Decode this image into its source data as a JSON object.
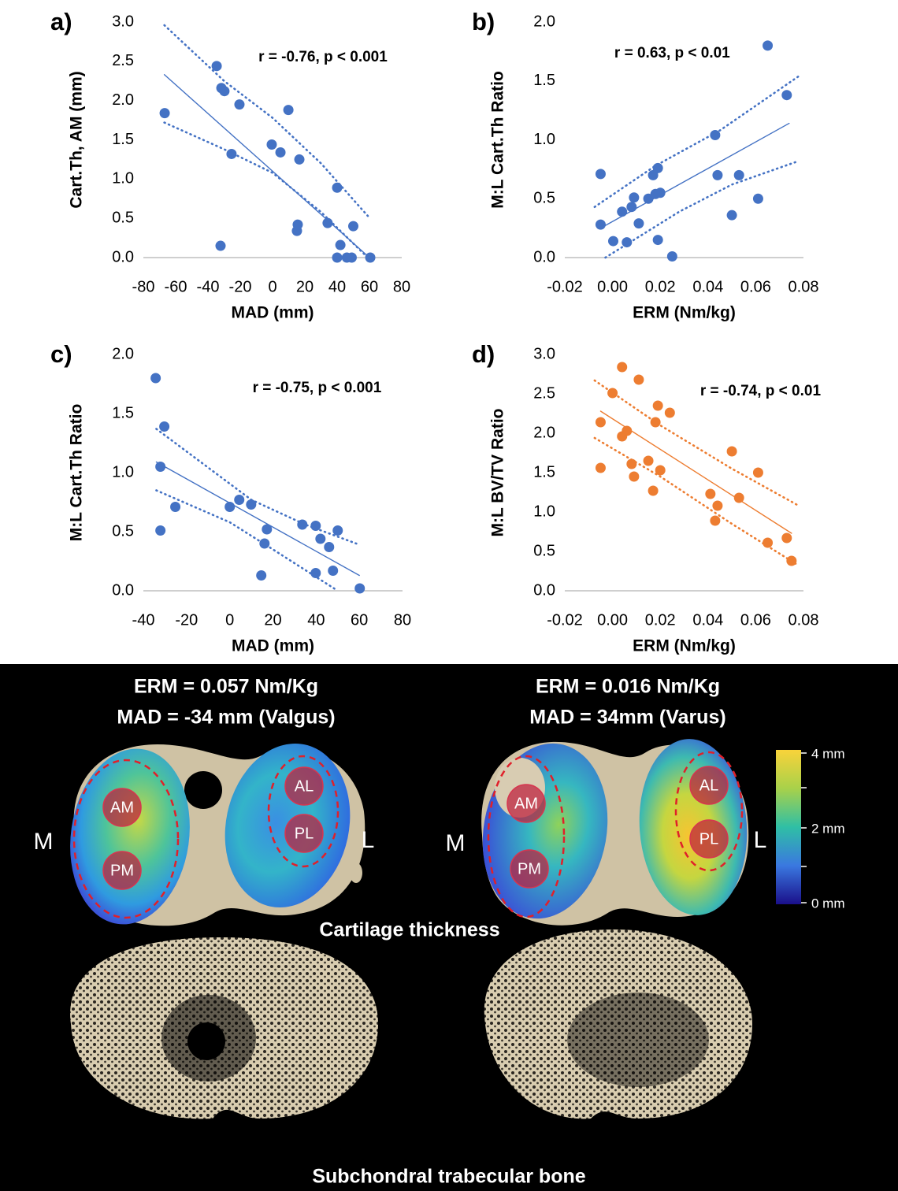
{
  "chart_data": [
    {
      "type": "scatter",
      "panel_label": "a)",
      "annotation": "r = -0.76, p < 0.001",
      "x_label": "MAD (mm)",
      "y_label": "Cart.Th, AM (mm)",
      "color": "#4472c4",
      "xlim": [
        -80,
        80
      ],
      "xticks": [
        -80,
        -60,
        -40,
        -20,
        0,
        20,
        40,
        60,
        80
      ],
      "ylim": [
        0,
        3
      ],
      "yticks": [
        {
          "value": 0,
          "label": "0.0"
        },
        0.5,
        {
          "value": 1,
          "label": "1.0"
        },
        1.5,
        {
          "value": 2,
          "label": "2.0"
        },
        2.5,
        {
          "value": 3,
          "label": "3.0"
        }
      ],
      "x": [
        -66.8,
        -34.6,
        -31.7,
        -29.8,
        -20.5,
        -25.4,
        -32.2,
        -0.5,
        4.9,
        9.8,
        16.6,
        15.6,
        15.1,
        34.1,
        40,
        42,
        40,
        46,
        49,
        50,
        60.5
      ],
      "values": [
        1.84,
        2.44,
        2.16,
        2.12,
        1.95,
        1.32,
        0.15,
        1.44,
        1.34,
        1.88,
        1.25,
        0.42,
        0.34,
        0.44,
        0.89,
        0.16,
        0,
        0,
        0,
        0.4,
        0
      ],
      "fit": {
        "x": [
          -67,
          60
        ],
        "y": [
          2.33,
          0
        ]
      },
      "ci_upper": {
        "x": [
          -67,
          -30,
          0,
          30,
          59
        ],
        "y": [
          2.96,
          2.25,
          1.78,
          1.2,
          0.53
        ]
      },
      "ci_lower": {
        "x": [
          -67,
          -30,
          0,
          30,
          59
        ],
        "y": [
          1.72,
          1.38,
          1.08,
          0.58,
          0
        ]
      }
    },
    {
      "type": "scatter",
      "panel_label": "b)",
      "annotation": "r = 0.63, p < 0.01",
      "x_label": "ERM (Nm/kg)",
      "y_label": "M:L Cart.Th Ratio",
      "color": "#4472c4",
      "xlim": [
        -0.02,
        0.08
      ],
      "xticks": [
        -0.02,
        {
          "value": 0,
          "label": "0.00"
        },
        0.02,
        0.04,
        0.06,
        0.08
      ],
      "ylim": [
        0,
        2
      ],
      "yticks": [
        {
          "value": 0,
          "label": "0.0"
        },
        0.5,
        {
          "value": 1,
          "label": "1.0"
        },
        1.5,
        {
          "value": 2,
          "label": "2.0"
        }
      ],
      "x": [
        -0.005,
        -0.005,
        0.0003,
        0.004,
        0.006,
        0.008,
        0.009,
        0.011,
        0.015,
        0.017,
        0.019,
        0.018,
        0.02,
        0.019,
        0.025,
        0.043,
        0.044,
        0.05,
        0.053,
        0.061,
        0.065,
        0.073
      ],
      "values": [
        0.71,
        0.28,
        0.14,
        0.39,
        0.13,
        0.43,
        0.51,
        0.29,
        0.5,
        0.7,
        0.76,
        0.54,
        0.55,
        0.15,
        0.01,
        1.04,
        0.7,
        0.36,
        0.7,
        0.5,
        1.8,
        1.38
      ],
      "fit": {
        "x": [
          -0.005,
          0.074
        ],
        "y": [
          0.25,
          1.14
        ]
      },
      "ci_upper": {
        "x": [
          -0.0075,
          0.018,
          0.045,
          0.078
        ],
        "y": [
          0.43,
          0.78,
          1.08,
          1.54
        ]
      },
      "ci_lower": {
        "x": [
          -0.003,
          0.028,
          0.05,
          0.078
        ],
        "y": [
          0,
          0.39,
          0.62,
          0.82
        ]
      }
    },
    {
      "type": "scatter",
      "panel_label": "c)",
      "annotation": "r = -0.75, p < 0.001",
      "x_label": "MAD (mm)",
      "y_label": "M:L Cart.Th Ratio",
      "color": "#4472c4",
      "xlim": [
        -40,
        80
      ],
      "xticks": [
        -40,
        -20,
        0,
        20,
        40,
        60,
        80
      ],
      "ylim": [
        0,
        2
      ],
      "yticks": [
        {
          "value": 0,
          "label": "0.0"
        },
        0.5,
        {
          "value": 1,
          "label": "1.0"
        },
        1.5,
        {
          "value": 2,
          "label": "2.0"
        }
      ],
      "x": [
        -34.3,
        -30.3,
        -32.1,
        -32.1,
        -25.2,
        0,
        4.4,
        9.9,
        17.2,
        16.1,
        14.6,
        33.6,
        39.8,
        42,
        46,
        50,
        39.8,
        47.8,
        60.2
      ],
      "values": [
        1.8,
        1.39,
        1.05,
        0.51,
        0.71,
        0.71,
        0.77,
        0.73,
        0.52,
        0.4,
        0.13,
        0.56,
        0.55,
        0.44,
        0.37,
        0.51,
        0.15,
        0.17,
        0.02
      ],
      "fit": {
        "x": [
          -34,
          60
        ],
        "y": [
          1.09,
          0.13
        ]
      },
      "ci_upper": {
        "x": [
          -34,
          10,
          35,
          60
        ],
        "y": [
          1.37,
          0.77,
          0.56,
          0.39
        ]
      },
      "ci_lower": {
        "x": [
          -34,
          0,
          20,
          50
        ],
        "y": [
          0.85,
          0.58,
          0.35,
          0
        ]
      }
    },
    {
      "type": "scatter",
      "panel_label": "d)",
      "annotation": "r = -0.74, p < 0.01",
      "x_label": "ERM (Nm/kg)",
      "y_label": "M:L BV/TV Ratio",
      "color": "#ed7d31",
      "xlim": [
        -0.02,
        0.08
      ],
      "xticks": [
        -0.02,
        {
          "value": 0,
          "label": "0.00"
        },
        0.02,
        0.04,
        0.06,
        0.08
      ],
      "ylim": [
        0,
        3
      ],
      "yticks": [
        {
          "value": 0,
          "label": "0.0"
        },
        0.5,
        {
          "value": 1,
          "label": "1.0"
        },
        1.5,
        {
          "value": 2,
          "label": "2.0"
        },
        2.5,
        {
          "value": 3,
          "label": "3.0"
        }
      ],
      "x": [
        -0.005,
        -0.005,
        0,
        0.004,
        0.004,
        0.006,
        0.008,
        0.009,
        0.011,
        0.015,
        0.017,
        0.018,
        0.019,
        0.02,
        0.024,
        0.041,
        0.043,
        0.044,
        0.05,
        0.053,
        0.061,
        0.065,
        0.073,
        0.075
      ],
      "values": [
        2.14,
        1.56,
        2.51,
        2.84,
        1.96,
        2.03,
        1.61,
        1.45,
        2.68,
        1.65,
        1.27,
        2.14,
        2.35,
        1.53,
        2.26,
        1.23,
        0.89,
        1.08,
        1.77,
        1.18,
        1.5,
        0.61,
        0.67,
        0.38
      ],
      "fit": {
        "x": [
          -0.005,
          0.075
        ],
        "y": [
          2.28,
          0.73
        ]
      },
      "ci_upper": {
        "x": [
          -0.0075,
          0.02,
          0.05,
          0.078
        ],
        "y": [
          2.67,
          2.1,
          1.55,
          1.08
        ]
      },
      "ci_lower": {
        "x": [
          -0.0075,
          0.02,
          0.05,
          0.078
        ],
        "y": [
          1.94,
          1.45,
          0.85,
          0.32
        ]
      }
    }
  ],
  "image_panel": {
    "left": {
      "title": [
        "ERM = 0.057 Nm/Kg",
        "MAD = -34 mm (Valgus)"
      ],
      "sides": [
        "M",
        "L"
      ],
      "regions": [
        "AM",
        "PM",
        "AL",
        "PL"
      ]
    },
    "right": {
      "title": [
        "ERM = 0.016 Nm/Kg",
        "MAD = 34mm (Varus)"
      ],
      "sides": [
        "M",
        "L"
      ],
      "regions": [
        "AM",
        "PM",
        "AL",
        "PL"
      ]
    },
    "colorbar_labels": [
      "4 mm",
      "2 mm",
      "0 mm"
    ],
    "captions": [
      "Cartilage thickness",
      "Subchondral trabecular bone"
    ]
  }
}
